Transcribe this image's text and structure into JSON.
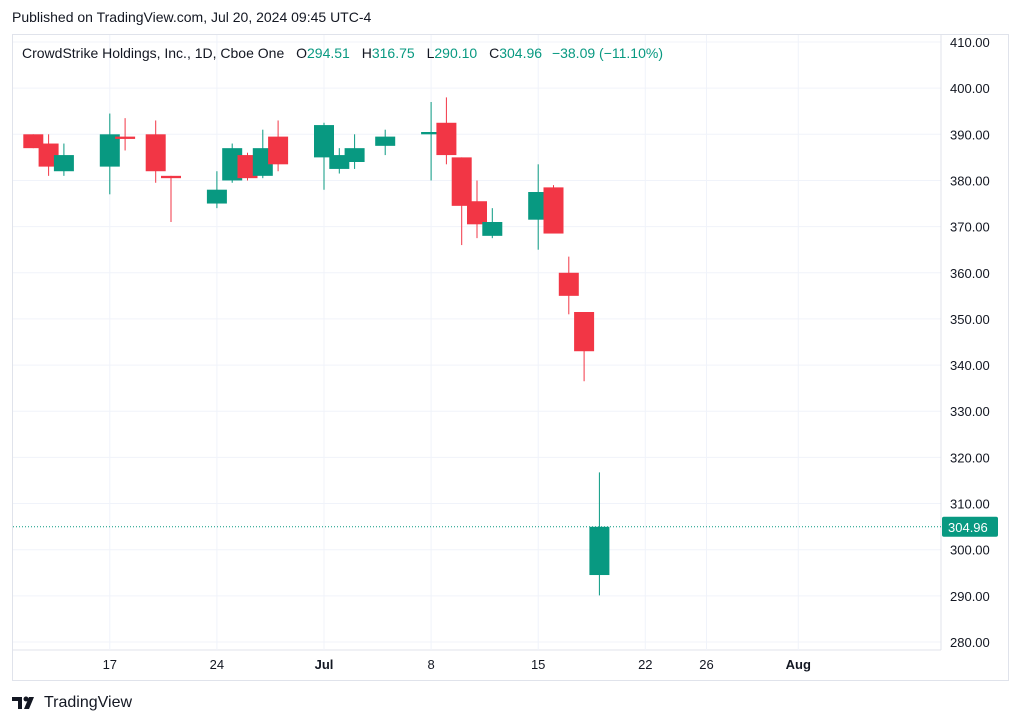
{
  "published": "Published on TradingView.com, Jul 20, 2024 09:45 UTC-4",
  "legend": {
    "symbol": "CrowdStrike Holdings, Inc., 1D, Cboe One",
    "o_label": "O",
    "o_value": "294.51",
    "h_label": "H",
    "h_value": "316.75",
    "l_label": "L",
    "l_value": "290.10",
    "c_label": "C",
    "c_value": "304.96",
    "change": "−38.09 (−11.10%)"
  },
  "footer": {
    "brand": "TradingView",
    "logo_icon": "tradingview-logo-icon"
  },
  "colors": {
    "up": "#089981",
    "down": "#f23645",
    "grid": "#f0f3fa",
    "text": "#131722"
  },
  "chart_data": {
    "type": "candlestick",
    "title": "CrowdStrike Holdings, Inc., 1D, Cboe One",
    "ylim": [
      280,
      410
    ],
    "y_ticks": [
      "410.00",
      "400.00",
      "390.00",
      "380.00",
      "370.00",
      "360.00",
      "350.00",
      "340.00",
      "330.00",
      "320.00",
      "310.00",
      "300.00",
      "290.00",
      "280.00"
    ],
    "x_ticks": [
      {
        "label": "17",
        "date": "2024-06-17"
      },
      {
        "label": "24",
        "date": "2024-06-24"
      },
      {
        "label": "Jul",
        "date": "2024-07-01"
      },
      {
        "label": "8",
        "date": "2024-07-08"
      },
      {
        "label": "15",
        "date": "2024-07-15"
      },
      {
        "label": "22",
        "date": "2024-07-22"
      },
      {
        "label": "26",
        "date": "2024-07-26"
      },
      {
        "label": "Aug",
        "date": "2024-08-01"
      }
    ],
    "last_price": "304.96",
    "grid": true,
    "candles": [
      {
        "date": "2024-06-12",
        "o": 390.0,
        "h": 390.0,
        "l": 387.0,
        "c": 387.0
      },
      {
        "date": "2024-06-13",
        "o": 388.0,
        "h": 390.0,
        "l": 381.0,
        "c": 383.0
      },
      {
        "date": "2024-06-14",
        "o": 382.0,
        "h": 388.0,
        "l": 381.0,
        "c": 385.5
      },
      {
        "date": "2024-06-17",
        "o": 383.0,
        "h": 394.5,
        "l": 377.0,
        "c": 390.0
      },
      {
        "date": "2024-06-18",
        "o": 389.5,
        "h": 393.5,
        "l": 386.5,
        "c": 389.0
      },
      {
        "date": "2024-06-20",
        "o": 390.0,
        "h": 393.0,
        "l": 379.5,
        "c": 382.0
      },
      {
        "date": "2024-06-21",
        "o": 381.0,
        "h": 381.0,
        "l": 371.0,
        "c": 380.5
      },
      {
        "date": "2024-06-24",
        "o": 375.0,
        "h": 382.0,
        "l": 374.0,
        "c": 378.0
      },
      {
        "date": "2024-06-25",
        "o": 380.0,
        "h": 388.0,
        "l": 379.5,
        "c": 387.0
      },
      {
        "date": "2024-06-26",
        "o": 385.5,
        "h": 386.0,
        "l": 380.0,
        "c": 380.5
      },
      {
        "date": "2024-06-27",
        "o": 381.0,
        "h": 391.0,
        "l": 380.5,
        "c": 387.0
      },
      {
        "date": "2024-06-28",
        "o": 389.5,
        "h": 393.0,
        "l": 382.0,
        "c": 383.5
      },
      {
        "date": "2024-07-01",
        "o": 385.0,
        "h": 392.5,
        "l": 378.0,
        "c": 392.0
      },
      {
        "date": "2024-07-02",
        "o": 382.5,
        "h": 387.0,
        "l": 381.5,
        "c": 385.5
      },
      {
        "date": "2024-07-03",
        "o": 384.0,
        "h": 390.0,
        "l": 382.5,
        "c": 387.0
      },
      {
        "date": "2024-07-05",
        "o": 387.5,
        "h": 391.0,
        "l": 385.5,
        "c": 389.5
      },
      {
        "date": "2024-07-08",
        "o": 390.0,
        "h": 397.0,
        "l": 380.0,
        "c": 390.5
      },
      {
        "date": "2024-07-09",
        "o": 392.5,
        "h": 398.0,
        "l": 383.5,
        "c": 385.5
      },
      {
        "date": "2024-07-10",
        "o": 385.0,
        "h": 385.0,
        "l": 366.0,
        "c": 374.5
      },
      {
        "date": "2024-07-11",
        "o": 375.5,
        "h": 380.0,
        "l": 367.5,
        "c": 370.5
      },
      {
        "date": "2024-07-12",
        "o": 368.0,
        "h": 374.0,
        "l": 367.5,
        "c": 371.0
      },
      {
        "date": "2024-07-15",
        "o": 371.5,
        "h": 383.5,
        "l": 365.0,
        "c": 377.5
      },
      {
        "date": "2024-07-16",
        "o": 378.5,
        "h": 379.0,
        "l": 368.5,
        "c": 368.5
      },
      {
        "date": "2024-07-17",
        "o": 360.0,
        "h": 363.5,
        "l": 351.0,
        "c": 355.0
      },
      {
        "date": "2024-07-18",
        "o": 351.5,
        "h": 351.5,
        "l": 336.5,
        "c": 343.0
      },
      {
        "date": "2024-07-19",
        "o": 294.51,
        "h": 316.75,
        "l": 290.1,
        "c": 304.96
      }
    ]
  }
}
